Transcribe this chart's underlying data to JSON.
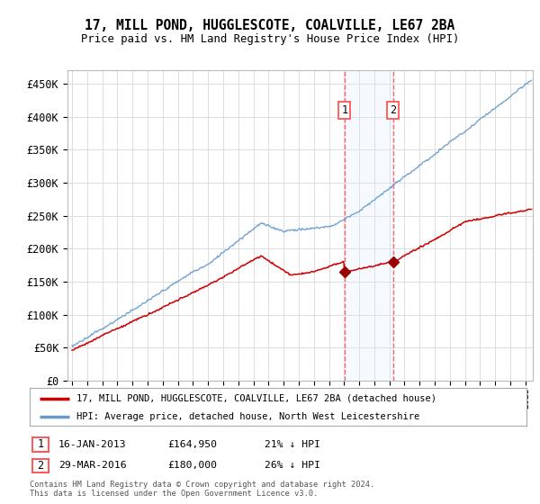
{
  "title": "17, MILL POND, HUGGLESCOTE, COALVILLE, LE67 2BA",
  "subtitle": "Price paid vs. HM Land Registry's House Price Index (HPI)",
  "yticks": [
    0,
    50000,
    100000,
    150000,
    200000,
    250000,
    300000,
    350000,
    400000,
    450000
  ],
  "ytick_labels": [
    "£0",
    "£50K",
    "£100K",
    "£150K",
    "£200K",
    "£250K",
    "£300K",
    "£350K",
    "£400K",
    "£450K"
  ],
  "xlim_start": 1994.7,
  "xlim_end": 2025.5,
  "ylim_bottom": 0,
  "ylim_top": 470000,
  "purchase1_date": 2013.04,
  "purchase1_label": "16-JAN-2013",
  "purchase1_price": 164950,
  "purchase1_price_str": "£164,950",
  "purchase1_pct": "21%",
  "purchase2_date": 2016.24,
  "purchase2_label": "29-MAR-2016",
  "purchase2_price": 180000,
  "purchase2_price_str": "£180,000",
  "purchase2_pct": "26%",
  "hpi_color": "#6699cc",
  "price_color": "#cc0000",
  "marker_color": "#990000",
  "vline_color": "#ff5555",
  "shade_color": "#ddeeff",
  "legend_label1": "17, MILL POND, HUGGLESCOTE, COALVILLE, LE67 2BA (detached house)",
  "legend_label2": "HPI: Average price, detached house, North West Leicestershire",
  "footer": "Contains HM Land Registry data © Crown copyright and database right 2024.\nThis data is licensed under the Open Government Licence v3.0.",
  "grid_color": "#dddddd",
  "background_color": "#ffffff"
}
